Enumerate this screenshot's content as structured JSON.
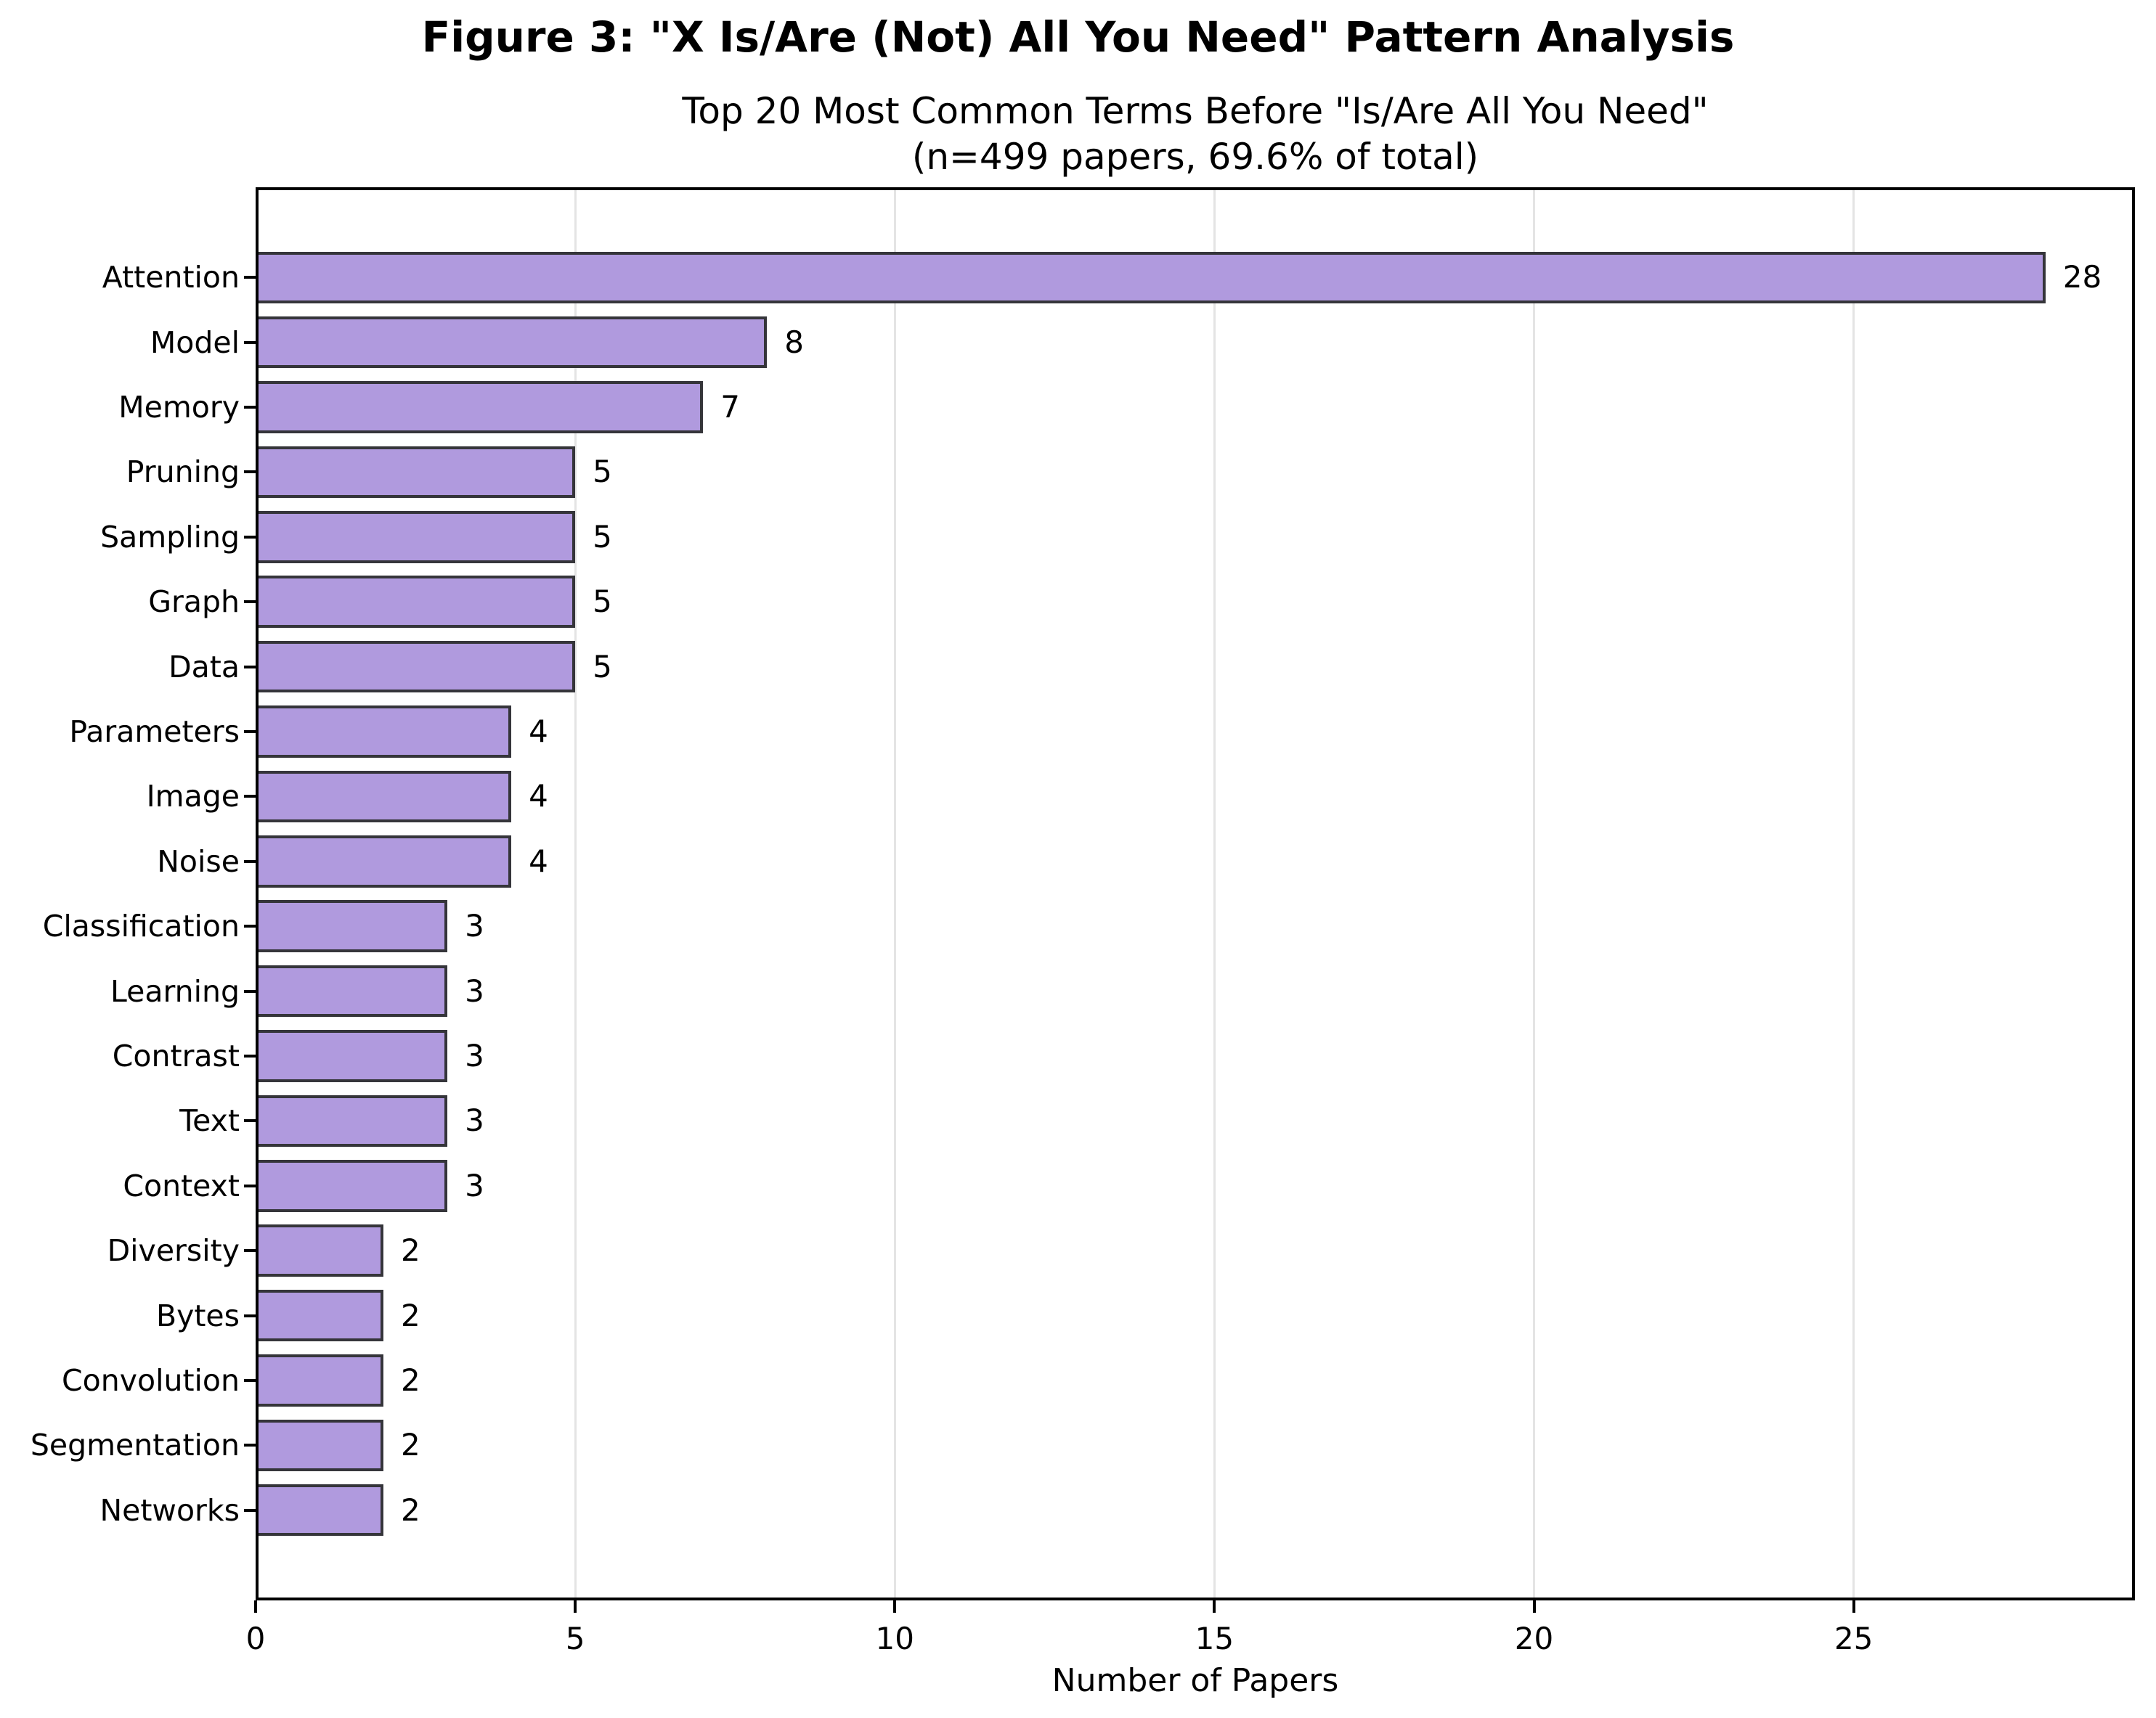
{
  "figure": {
    "title": "Figure 3: \"X Is/Are (Not) All You Need\" Pattern Analysis"
  },
  "chart_data": {
    "type": "bar",
    "orientation": "horizontal",
    "title": "Top 20 Most Common Terms Before \"Is/Are All You Need\"",
    "subtitle": "(n=499 papers, 69.6% of total)",
    "xlabel": "Number of Papers",
    "categories": [
      "Attention",
      "Model",
      "Memory",
      "Pruning",
      "Sampling",
      "Graph",
      "Data",
      "Parameters",
      "Image",
      "Noise",
      "Classification",
      "Learning",
      "Contrast",
      "Text",
      "Context",
      "Diversity",
      "Bytes",
      "Convolution",
      "Segmentation",
      "Networks"
    ],
    "values": [
      28,
      8,
      7,
      5,
      5,
      5,
      5,
      4,
      4,
      4,
      3,
      3,
      3,
      3,
      3,
      2,
      2,
      2,
      2,
      2
    ],
    "xticks": [
      0,
      5,
      10,
      15,
      20,
      25
    ],
    "xlim": [
      0,
      29.4
    ],
    "grid": "vertical",
    "legend": "none",
    "bar_color": "#b09ade",
    "bar_edge_color": "#35353a",
    "grid_color": "#e4e4e4",
    "axis_color": "#000000",
    "text_color": "#000000",
    "background": "#ffffff"
  }
}
